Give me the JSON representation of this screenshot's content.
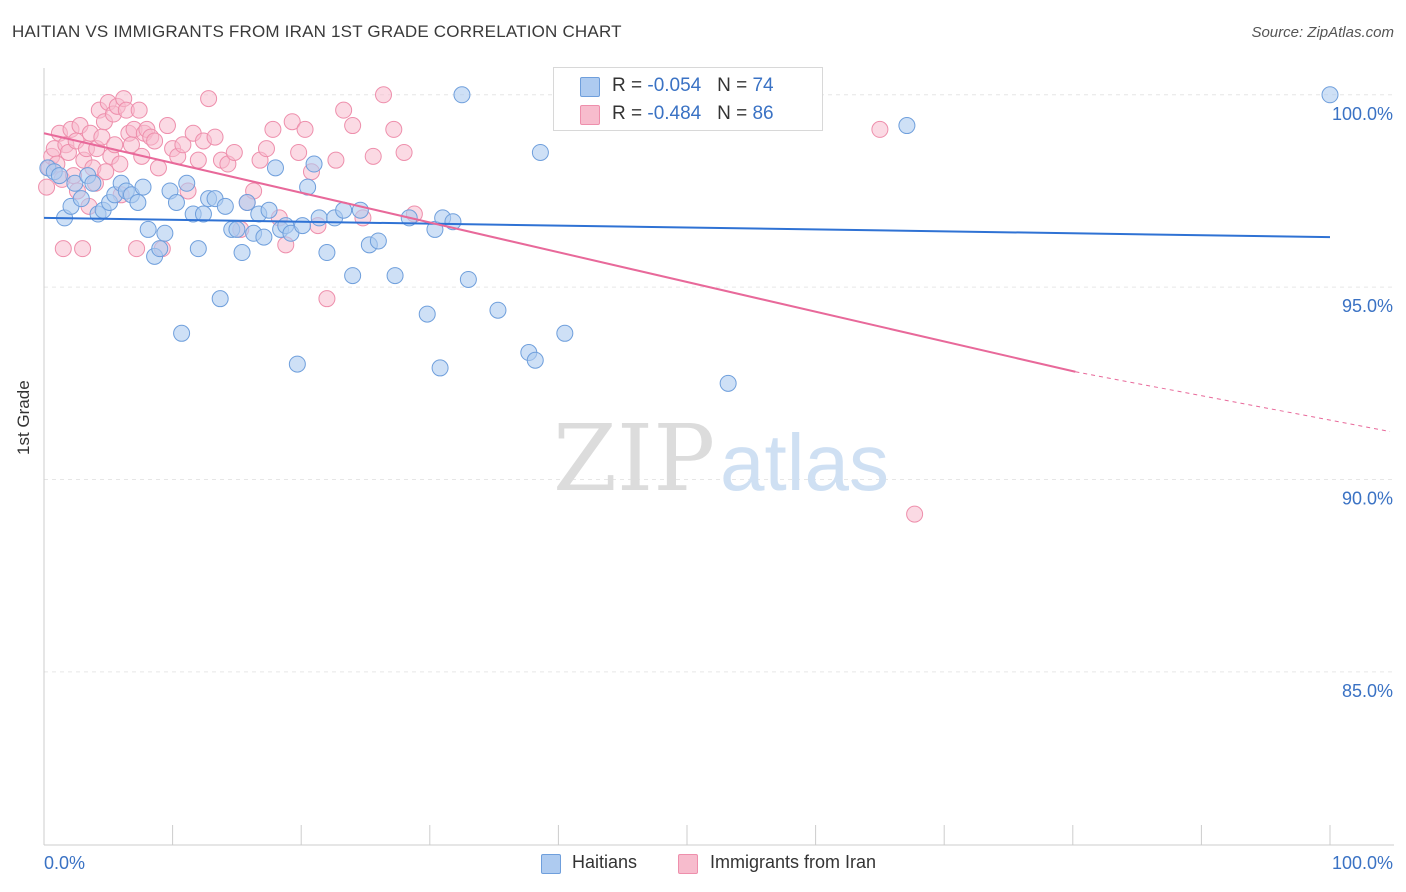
{
  "header": {
    "title": "HAITIAN VS IMMIGRANTS FROM IRAN 1ST GRADE CORRELATION CHART",
    "source": "Source: ZipAtlas.com"
  },
  "legend": {
    "rows": [
      {
        "r_label": "R = ",
        "r_value": "-0.054",
        "n_label": "N = ",
        "n_value": "74"
      },
      {
        "r_label": "R = ",
        "r_value": "-0.484",
        "n_label": "N = ",
        "n_value": "86"
      }
    ],
    "bottom": [
      "Haitians",
      "Immigrants from Iran"
    ]
  },
  "watermark": {
    "zip": "ZIP",
    "atlas": "atlas"
  },
  "colors": {
    "haitians_fill": "#aecbf0",
    "haitians_stroke": "#6f9fdc",
    "haitians_line": "#2f72d4",
    "iran_fill": "#f7bccd",
    "iran_stroke": "#ee8fac",
    "iran_line": "#e8699a",
    "tick_text": "#3a72c4"
  },
  "chart_data": {
    "type": "scatter",
    "title": "HAITIAN VS IMMIGRANTS FROM IRAN 1ST GRADE CORRELATION CHART",
    "xlabel": "",
    "ylabel": "1st Grade",
    "x_tick_labels": [
      "0.0%",
      "100.0%"
    ],
    "y_ticks": [
      85.0,
      90.0,
      95.0,
      100.0
    ],
    "y_tick_labels": [
      "85.0%",
      "90.0%",
      "95.0%",
      "100.0%"
    ],
    "xlim": [
      0,
      100
    ],
    "ylim": [
      80.5,
      100.8
    ],
    "grid": true,
    "series": [
      {
        "name": "Haitians",
        "R": -0.054,
        "N": 74,
        "trend": {
          "x0": 0,
          "y0": 96.8,
          "x1": 100,
          "y1": 96.3
        },
        "points": [
          [
            0.3,
            98.1
          ],
          [
            0.8,
            98.0
          ],
          [
            1.2,
            97.9
          ],
          [
            1.6,
            96.8
          ],
          [
            2.1,
            97.1
          ],
          [
            2.4,
            97.7
          ],
          [
            2.9,
            97.3
          ],
          [
            3.4,
            97.9
          ],
          [
            3.8,
            97.7
          ],
          [
            4.2,
            96.9
          ],
          [
            4.6,
            97.0
          ],
          [
            5.1,
            97.2
          ],
          [
            5.5,
            97.4
          ],
          [
            6.0,
            97.7
          ],
          [
            6.4,
            97.5
          ],
          [
            6.8,
            97.4
          ],
          [
            7.3,
            97.2
          ],
          [
            7.7,
            97.6
          ],
          [
            8.1,
            96.5
          ],
          [
            8.6,
            95.8
          ],
          [
            9.0,
            96.0
          ],
          [
            9.4,
            96.4
          ],
          [
            9.8,
            97.5
          ],
          [
            10.3,
            97.2
          ],
          [
            10.7,
            93.8
          ],
          [
            11.1,
            97.7
          ],
          [
            11.6,
            96.9
          ],
          [
            12.0,
            96.0
          ],
          [
            12.4,
            96.9
          ],
          [
            12.8,
            97.3
          ],
          [
            13.3,
            97.3
          ],
          [
            13.7,
            94.7
          ],
          [
            14.1,
            97.1
          ],
          [
            14.6,
            96.5
          ],
          [
            15.0,
            96.5
          ],
          [
            15.4,
            95.9
          ],
          [
            15.8,
            97.2
          ],
          [
            16.3,
            96.4
          ],
          [
            16.7,
            96.9
          ],
          [
            17.1,
            96.3
          ],
          [
            17.5,
            97.0
          ],
          [
            18.0,
            98.1
          ],
          [
            18.4,
            96.5
          ],
          [
            18.8,
            96.6
          ],
          [
            19.2,
            96.4
          ],
          [
            19.7,
            93.0
          ],
          [
            20.1,
            96.6
          ],
          [
            20.5,
            97.6
          ],
          [
            21.0,
            98.2
          ],
          [
            21.4,
            96.8
          ],
          [
            22.0,
            95.9
          ],
          [
            22.6,
            96.8
          ],
          [
            23.3,
            97.0
          ],
          [
            24.0,
            95.3
          ],
          [
            24.6,
            97.0
          ],
          [
            25.3,
            96.1
          ],
          [
            26.0,
            96.2
          ],
          [
            27.3,
            95.3
          ],
          [
            28.4,
            96.8
          ],
          [
            29.8,
            94.3
          ],
          [
            30.4,
            96.5
          ],
          [
            30.8,
            92.9
          ],
          [
            31.0,
            96.8
          ],
          [
            31.8,
            96.7
          ],
          [
            32.5,
            100.0
          ],
          [
            33.0,
            95.2
          ],
          [
            35.3,
            94.4
          ],
          [
            37.7,
            93.3
          ],
          [
            38.2,
            93.1
          ],
          [
            38.6,
            98.5
          ],
          [
            40.5,
            93.8
          ],
          [
            53.2,
            92.5
          ],
          [
            67.1,
            99.2
          ],
          [
            100.0,
            100.0
          ]
        ]
      },
      {
        "name": "Immigrants from Iran",
        "R": -0.484,
        "N": 86,
        "trend": {
          "x0": 0,
          "y0": 99.0,
          "x1": 80.2,
          "y1": 92.8,
          "dash_to_x": 100,
          "dash_to_y": 91.3
        },
        "points": [
          [
            0.2,
            97.6
          ],
          [
            0.4,
            98.1
          ],
          [
            0.6,
            98.4
          ],
          [
            0.8,
            98.6
          ],
          [
            1.0,
            98.2
          ],
          [
            1.2,
            99.0
          ],
          [
            1.4,
            97.8
          ],
          [
            1.5,
            96.0
          ],
          [
            1.7,
            98.7
          ],
          [
            1.9,
            98.5
          ],
          [
            2.1,
            99.1
          ],
          [
            2.3,
            97.9
          ],
          [
            2.5,
            98.8
          ],
          [
            2.6,
            97.5
          ],
          [
            2.8,
            99.2
          ],
          [
            3.0,
            96.0
          ],
          [
            3.1,
            98.3
          ],
          [
            3.3,
            98.6
          ],
          [
            3.5,
            97.1
          ],
          [
            3.6,
            99.0
          ],
          [
            3.8,
            98.1
          ],
          [
            4.0,
            97.7
          ],
          [
            4.1,
            98.6
          ],
          [
            4.3,
            99.6
          ],
          [
            4.5,
            98.9
          ],
          [
            4.7,
            99.3
          ],
          [
            4.8,
            98.0
          ],
          [
            5.0,
            99.8
          ],
          [
            5.2,
            98.4
          ],
          [
            5.4,
            99.5
          ],
          [
            5.5,
            98.7
          ],
          [
            5.7,
            99.7
          ],
          [
            5.9,
            98.2
          ],
          [
            6.0,
            97.4
          ],
          [
            6.2,
            99.9
          ],
          [
            6.4,
            99.6
          ],
          [
            6.6,
            99.0
          ],
          [
            6.8,
            98.7
          ],
          [
            7.0,
            99.1
          ],
          [
            7.2,
            96.0
          ],
          [
            7.4,
            99.6
          ],
          [
            7.6,
            98.4
          ],
          [
            7.8,
            99.0
          ],
          [
            8.0,
            99.1
          ],
          [
            8.3,
            98.9
          ],
          [
            8.6,
            98.8
          ],
          [
            8.9,
            98.1
          ],
          [
            9.2,
            96.0
          ],
          [
            9.6,
            99.2
          ],
          [
            10.0,
            98.6
          ],
          [
            10.4,
            98.4
          ],
          [
            10.8,
            98.7
          ],
          [
            11.2,
            97.5
          ],
          [
            11.6,
            99.0
          ],
          [
            12.0,
            98.3
          ],
          [
            12.4,
            98.8
          ],
          [
            12.8,
            99.9
          ],
          [
            13.3,
            98.9
          ],
          [
            13.8,
            98.3
          ],
          [
            14.3,
            98.2
          ],
          [
            14.8,
            98.5
          ],
          [
            15.3,
            96.5
          ],
          [
            15.8,
            97.2
          ],
          [
            16.3,
            97.5
          ],
          [
            16.8,
            98.3
          ],
          [
            17.3,
            98.6
          ],
          [
            17.8,
            99.1
          ],
          [
            18.3,
            96.8
          ],
          [
            18.8,
            96.1
          ],
          [
            19.3,
            99.3
          ],
          [
            19.8,
            98.5
          ],
          [
            20.3,
            99.1
          ],
          [
            20.8,
            98.0
          ],
          [
            21.3,
            96.6
          ],
          [
            22.0,
            94.7
          ],
          [
            22.7,
            98.3
          ],
          [
            23.3,
            99.6
          ],
          [
            24.0,
            99.2
          ],
          [
            24.8,
            96.8
          ],
          [
            25.6,
            98.4
          ],
          [
            26.4,
            100.0
          ],
          [
            27.2,
            99.1
          ],
          [
            28.0,
            98.5
          ],
          [
            28.8,
            96.9
          ],
          [
            65.0,
            99.1
          ],
          [
            67.7,
            89.1
          ]
        ]
      }
    ]
  }
}
